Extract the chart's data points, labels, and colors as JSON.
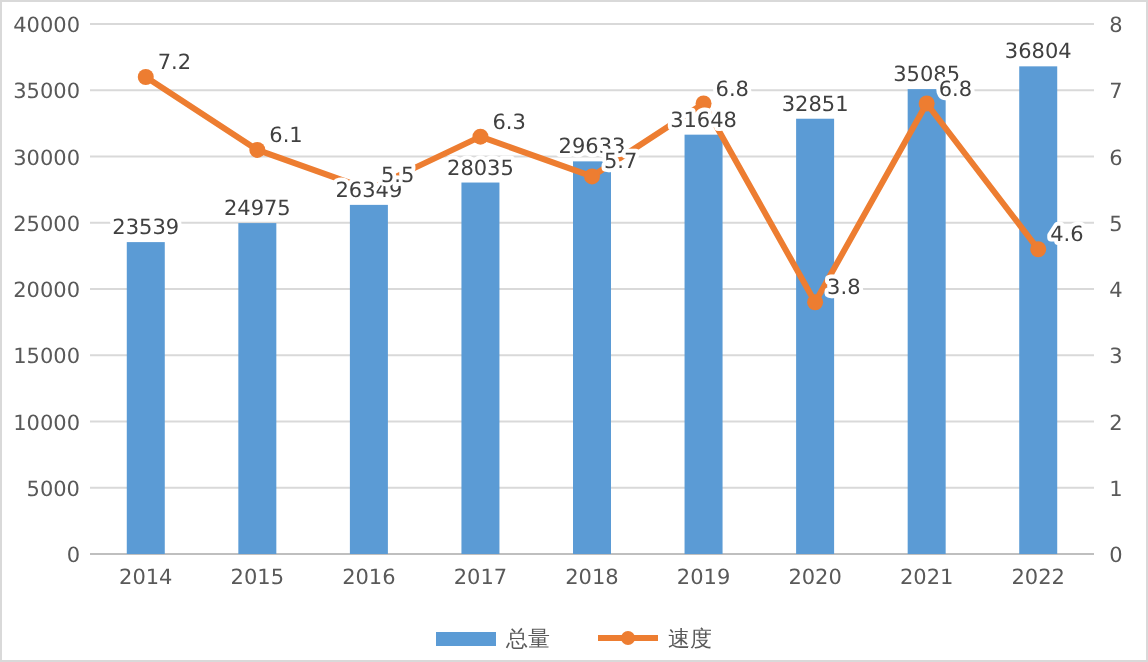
{
  "chart_data": {
    "type": "bar",
    "categories": [
      "2014",
      "2015",
      "2016",
      "2017",
      "2018",
      "2019",
      "2020",
      "2021",
      "2022"
    ],
    "series": [
      {
        "name": "总量",
        "color": "#5b9bd5",
        "values": [
          23539,
          24975,
          26349,
          28035,
          29633,
          31648,
          32851,
          35085,
          36804
        ]
      },
      {
        "name": "速度",
        "type": "line",
        "axis": "y2",
        "color": "#ed7d31",
        "marker": "circle",
        "values": [
          7.2,
          6.1,
          5.5,
          6.3,
          5.7,
          6.8,
          3.8,
          6.8,
          4.6
        ]
      }
    ],
    "ylim": [
      0,
      40000
    ],
    "yticks": [
      0,
      5000,
      10000,
      15000,
      20000,
      25000,
      30000,
      35000,
      40000
    ],
    "y2lim": [
      0,
      8
    ],
    "y2ticks": [
      0,
      1,
      2,
      3,
      4,
      5,
      6,
      7,
      8
    ],
    "grid": "y",
    "legend": "bottom",
    "data_labels": true
  }
}
